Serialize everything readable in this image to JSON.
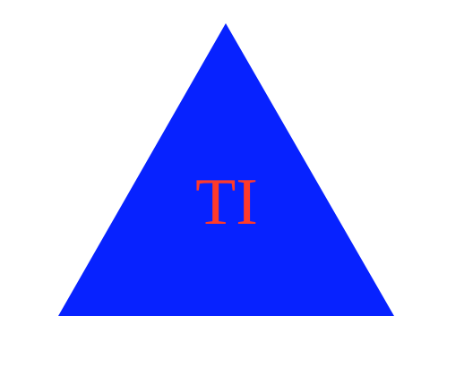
{
  "shape": {
    "name": "triangle",
    "fill_color": "#0722ff"
  },
  "label": {
    "text": "TI",
    "color": "#ff3a2a"
  },
  "background_color": "#ffffff"
}
